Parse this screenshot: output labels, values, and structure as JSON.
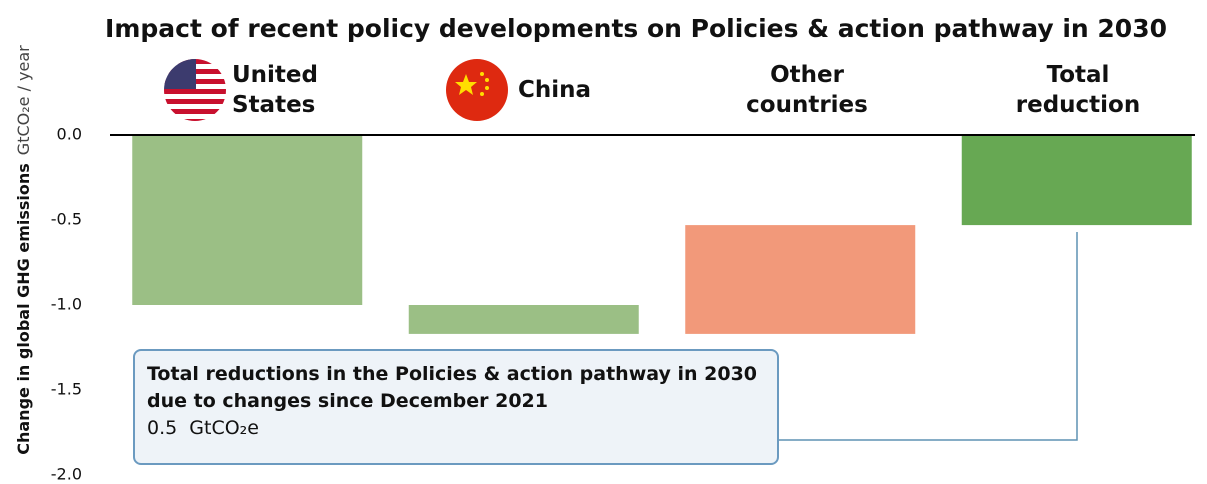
{
  "chart_data": {
    "type": "waterfall",
    "title": "Impact of recent policy developments on Policies & action pathway in 2030",
    "y_label": "Change in global GHG emissions",
    "y_unit": "GtCO₂e / year",
    "categories": [
      "United States",
      "China",
      "Other countries",
      "Total reduction"
    ],
    "values": [
      -1.0,
      -0.17,
      0.64,
      -0.53
    ],
    "is_total": [
      false,
      false,
      false,
      true
    ],
    "colors": [
      "#9bbf85",
      "#9bbf85",
      "#f2997a",
      "#67a853"
    ],
    "ylim": [
      -2,
      0
    ],
    "yticks": [
      {
        "value": 0,
        "label": "0.0"
      },
      -0.5,
      {
        "value": -1,
        "label": "-1.0"
      },
      -1.5,
      {
        "value": -2,
        "label": "-2.0"
      }
    ],
    "annotation": {
      "text": "Total reductions in the Policies & action pathway in 2030 due to changes since December 2021",
      "value": 0.5,
      "unit": "GtCO₂e"
    }
  }
}
